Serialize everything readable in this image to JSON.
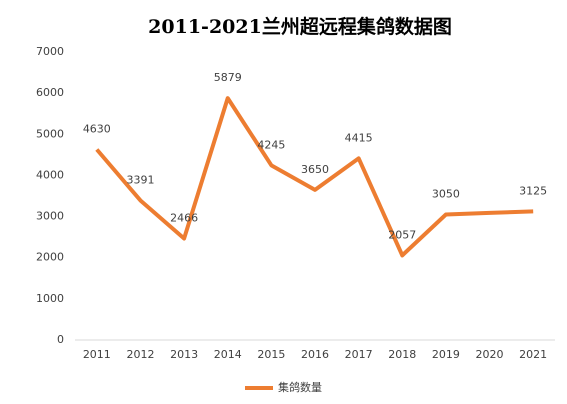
{
  "chart_data": {
    "type": "line",
    "title": "2011-2021兰州超远程集鸽数据图",
    "categories": [
      "2011",
      "2012",
      "2013",
      "2014",
      "2015",
      "2016",
      "2017",
      "2018",
      "2019",
      "2020",
      "2021"
    ],
    "series": [
      {
        "name": "集鸽数量",
        "color": "#ed7d31",
        "values": [
          4630,
          3391,
          2466,
          5879,
          4245,
          3650,
          4415,
          2057,
          3050,
          3090,
          3125
        ],
        "value_labels": [
          "4630",
          "3391",
          "2466",
          "5879",
          "4245",
          "3650",
          "4415",
          "2057",
          "3050",
          null,
          "3125"
        ]
      }
    ],
    "ylim": [
      0,
      7000
    ],
    "yticks": [
      0,
      1000,
      2000,
      3000,
      4000,
      5000,
      6000,
      7000
    ],
    "grid": false,
    "legend": "bottom"
  }
}
